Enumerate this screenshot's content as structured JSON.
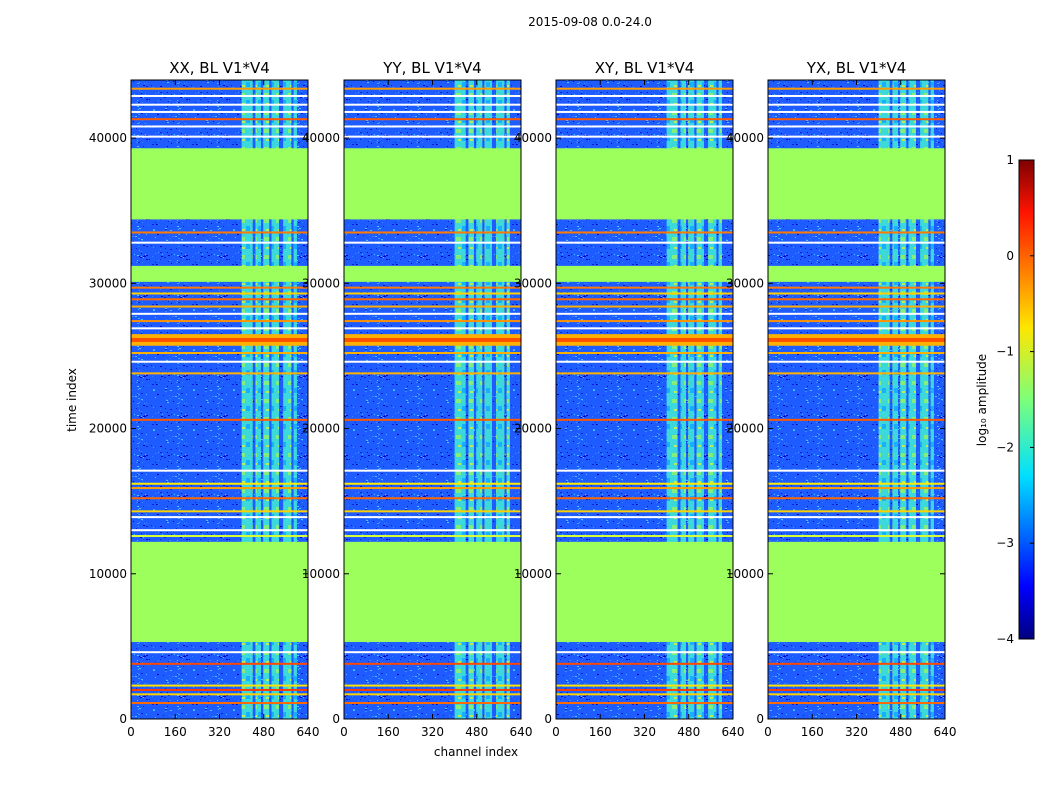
{
  "chart_data": {
    "type": "heatmap",
    "suptitle": "2015-09-08 0.0-24.0",
    "xlabel": "channel index",
    "ylabel": "time index",
    "xlim": [
      0,
      640
    ],
    "ylim": [
      0,
      44000
    ],
    "xticks": [
      0,
      160,
      320,
      480,
      640
    ],
    "yticks": [
      0,
      10000,
      20000,
      30000,
      40000
    ],
    "panels": [
      {
        "title": "XX, BL V1*V4"
      },
      {
        "title": "YY, BL V1*V4"
      },
      {
        "title": "XY, BL V1*V4"
      },
      {
        "title": "YX, BL V1*V4"
      }
    ],
    "flagged_time_ranges": [
      [
        5300,
        12200
      ],
      [
        34400,
        39300
      ],
      [
        30100,
        31200
      ]
    ],
    "bright_rfi_time_ranges": [
      [
        25700,
        26500
      ]
    ],
    "colorbar": {
      "label": "log₁₀ amplitude",
      "range": [
        -4,
        1
      ],
      "ticks": [
        -4,
        -3,
        -2,
        -1,
        0,
        1
      ],
      "colormap": "jet"
    }
  }
}
